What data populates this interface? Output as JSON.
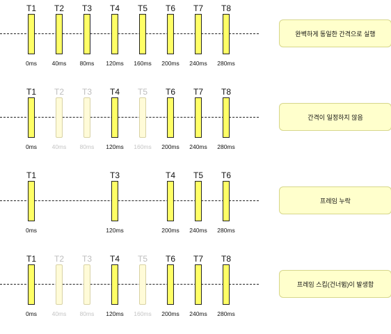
{
  "rows": [
    {
      "note": "완벽하게 동일한 간격으로 실행",
      "frames": [
        {
          "label": "T1",
          "time": "0ms",
          "state": "active"
        },
        {
          "label": "T2",
          "time": "40ms",
          "state": "active"
        },
        {
          "label": "T3",
          "time": "80ms",
          "state": "active"
        },
        {
          "label": "T4",
          "time": "120ms",
          "state": "active"
        },
        {
          "label": "T5",
          "time": "160ms",
          "state": "active"
        },
        {
          "label": "T6",
          "time": "200ms",
          "state": "active"
        },
        {
          "label": "T7",
          "time": "240ms",
          "state": "active"
        },
        {
          "label": "T8",
          "time": "280ms",
          "state": "active"
        }
      ]
    },
    {
      "note": "간격이 일정하지 않음",
      "frames": [
        {
          "label": "T1",
          "time": "0ms",
          "state": "active"
        },
        {
          "label": "T2",
          "time": "40ms",
          "state": "dim"
        },
        {
          "label": "T3",
          "time": "80ms",
          "state": "dim"
        },
        {
          "label": "T4",
          "time": "120ms",
          "state": "active"
        },
        {
          "label": "T5",
          "time": "160ms",
          "state": "dim"
        },
        {
          "label": "T6",
          "time": "200ms",
          "state": "active"
        },
        {
          "label": "T7",
          "time": "240ms",
          "state": "active"
        },
        {
          "label": "T8",
          "time": "280ms",
          "state": "active"
        }
      ]
    },
    {
      "note": "프레임 누락",
      "frames": [
        {
          "label": "T1",
          "time": "0ms",
          "state": "active"
        },
        {
          "label": "T3",
          "time": "120ms",
          "state": "active"
        },
        {
          "label": "T4",
          "time": "200ms",
          "state": "active"
        },
        {
          "label": "T5",
          "time": "240ms",
          "state": "active"
        },
        {
          "label": "T6",
          "time": "280ms",
          "state": "active"
        }
      ]
    },
    {
      "note": "프레임 스킵(건너뜀)이 발생함",
      "frames": [
        {
          "label": "T1",
          "time": "0ms",
          "state": "active"
        },
        {
          "label": "T2",
          "time": "40ms",
          "state": "dim"
        },
        {
          "label": "T3",
          "time": "80ms",
          "state": "dim"
        },
        {
          "label": "T4",
          "time": "120ms",
          "state": "active"
        },
        {
          "label": "T5",
          "time": "160ms",
          "state": "dim"
        },
        {
          "label": "T6",
          "time": "200ms",
          "state": "active"
        },
        {
          "label": "T7",
          "time": "240ms",
          "state": "active"
        },
        {
          "label": "T8",
          "time": "280ms",
          "state": "active"
        }
      ]
    }
  ],
  "colors": {
    "frame_active": "#ffff66",
    "frame_dim": "#fffbd8",
    "note_bg": "#ffffcc",
    "dim_text": "#bdbdbd"
  }
}
